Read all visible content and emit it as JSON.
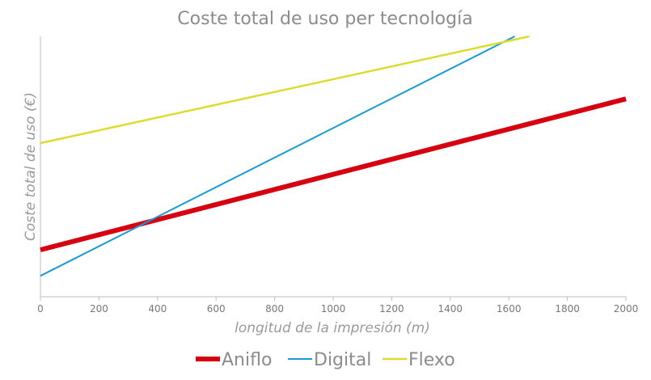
{
  "chart_data": {
    "type": "line",
    "title": "Coste total de uso per tecnología",
    "xlabel": "longitud de la impresión (m)",
    "ylabel": "Coste total de uso (€)",
    "xlim": [
      0,
      2000
    ],
    "ylim": [
      0,
      100
    ],
    "x_ticks": [
      0,
      200,
      400,
      600,
      800,
      1000,
      1200,
      1400,
      1600,
      1800,
      2000
    ],
    "grid": false,
    "y_tick_labels": false,
    "legend_position": "bottom",
    "series": [
      {
        "name": "Aniflo",
        "color": "#d7000f",
        "x": [
          0,
          2000
        ],
        "y": [
          18,
          76
        ]
      },
      {
        "name": "Digital",
        "color": "#1a9ad6",
        "x": [
          0,
          1620
        ],
        "y": [
          8,
          100
        ]
      },
      {
        "name": "Flexo",
        "color": "#dcdc2e",
        "x": [
          0,
          1670
        ],
        "y": [
          59,
          100
        ]
      }
    ]
  }
}
